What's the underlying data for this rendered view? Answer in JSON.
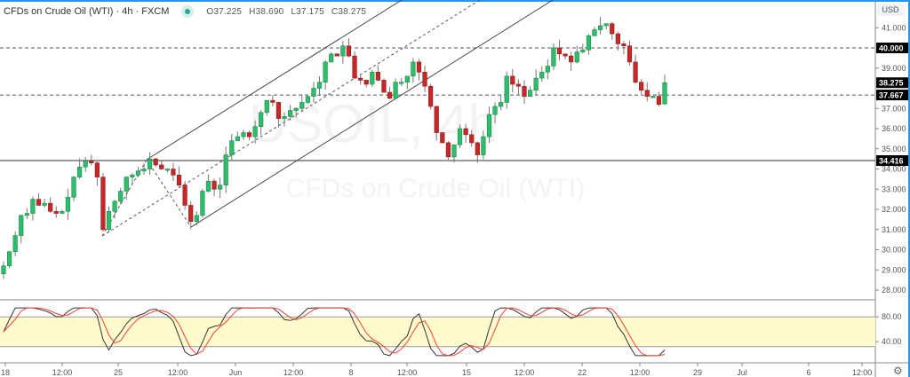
{
  "header": {
    "symbol_title": "CFDs on Crude Oil (WTI) · 4h · FXCM",
    "status_dot_color": "#26a69a",
    "ohlc": {
      "open": "O37.225",
      "high": "H38.690",
      "low": "L37.175",
      "close": "C38.275"
    }
  },
  "price_axis": {
    "currency_label": "USD",
    "ticks": [
      "41.000",
      "40.000",
      "39.000",
      "38.275",
      "37.667",
      "37.000",
      "36.000",
      "35.000",
      "34.416",
      "34.000",
      "33.000",
      "32.000",
      "31.000",
      "30.000",
      "29.000",
      "28.000"
    ],
    "highlighted_labels": [
      "40.000",
      "38.275",
      "37.667",
      "34.416"
    ]
  },
  "oscillator_axis": {
    "ticks": [
      "80.00",
      "40.00"
    ]
  },
  "time_axis": {
    "labels": [
      "18",
      "12:00",
      "25",
      "12:00",
      "Jun",
      "12:00",
      "8",
      "12:00",
      "15",
      "12:00",
      "22",
      "12:00",
      "29",
      "Jul",
      "6",
      "12:00"
    ]
  },
  "watermark": {
    "symbol": "USOIL, 4h",
    "description": "CFDs on Crude Oil (WTI)"
  },
  "colors": {
    "up": "#26a69a",
    "up_fill": "#2ebd6a",
    "down": "#c62828",
    "accent": "#2196f3",
    "band": "#fffbcc",
    "stoch_k": "#333333",
    "stoch_d": "#f44336"
  },
  "chart_data": {
    "type": "candlestick",
    "title": "CFDs on Crude Oil (WTI) · 4h · FXCM",
    "ylabel": "USD",
    "ylim": [
      27.6,
      41.8
    ],
    "x_tick_labels": [
      "18",
      "12:00",
      "25",
      "12:00",
      "Jun",
      "12:00",
      "8",
      "12:00",
      "15",
      "12:00",
      "22",
      "12:00",
      "29",
      "Jul",
      "6",
      "12:00"
    ],
    "last": {
      "open": 37.225,
      "high": 38.69,
      "low": 37.175,
      "close": 38.275
    },
    "horizontal_levels": [
      40.0,
      37.667,
      34.416
    ],
    "annotations": [
      "Andrews pitchfork from ~30.8 (May 22) through 34.6 and 31.1 pivots",
      "Horizontal resistance 40.000",
      "Dashed level 37.667",
      "Support 34.416"
    ],
    "candles_close_path": [
      29.2,
      29.9,
      30.7,
      31.7,
      31.8,
      32.5,
      32.2,
      32.3,
      31.9,
      31.8,
      31.9,
      32.6,
      33.6,
      34.1,
      34.4,
      34.3,
      33.6,
      31.0,
      31.9,
      32.4,
      32.9,
      33.6,
      33.7,
      33.9,
      34.0,
      34.5,
      34.2,
      34.0,
      34.0,
      33.7,
      33.2,
      32.2,
      31.4,
      31.7,
      32.9,
      33.4,
      33.0,
      33.2,
      34.7,
      35.4,
      35.6,
      35.8,
      35.6,
      36.1,
      36.8,
      37.4,
      37.3,
      36.5,
      36.6,
      36.9,
      37.0,
      37.3,
      37.6,
      38.0,
      38.3,
      39.3,
      39.7,
      39.6,
      40.1,
      39.6,
      38.5,
      38.4,
      38.2,
      38.8,
      38.4,
      37.8,
      37.5,
      38.3,
      38.3,
      38.6,
      39.3,
      38.8,
      38.1,
      37.1,
      35.8,
      35.3,
      34.6,
      35.2,
      36.0,
      35.7,
      35.3,
      34.7,
      35.6,
      36.7,
      37.1,
      37.3,
      38.6,
      38.2,
      38.1,
      37.6,
      37.9,
      38.5,
      38.8,
      39.1,
      40.0,
      39.7,
      39.6,
      39.3,
      39.8,
      39.9,
      40.6,
      40.9,
      41.1,
      41.2,
      40.7,
      40.2,
      40.1,
      39.3,
      38.3,
      37.9,
      37.6,
      37.6,
      37.2,
      38.275
    ],
    "oscillator": {
      "name": "Stochastic",
      "upper": 80,
      "lower": 20,
      "ylim": [
        0,
        100
      ]
    }
  }
}
